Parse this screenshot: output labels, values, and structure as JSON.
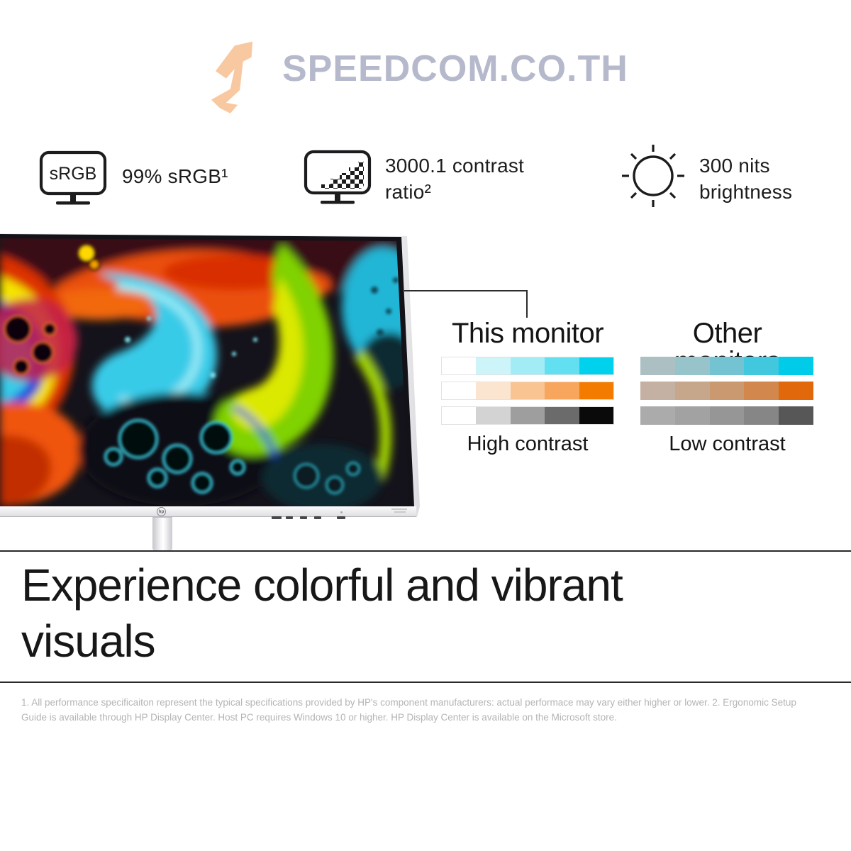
{
  "brand": {
    "name": "SPEEDCOM.CO.TH"
  },
  "specs": [
    {
      "icon": "srgb-monitor-icon",
      "icon_text": "sRGB",
      "lines": [
        "99% sRGB¹"
      ]
    },
    {
      "icon": "contrast-checkerboard-icon",
      "lines": [
        "3000.1 contrast",
        "ratio²"
      ]
    },
    {
      "icon": "brightness-sun-icon",
      "lines": [
        "300 nits",
        "brightness"
      ]
    }
  ],
  "monitor": {
    "logo_text": "hp"
  },
  "comparison": {
    "left": {
      "title": "This monitor",
      "caption": "High contrast",
      "rows": [
        {
          "name": "cyan",
          "colors": [
            "#ffffff",
            "#cdf4f9",
            "#a2ecf5",
            "#63dff2",
            "#00d2ee"
          ]
        },
        {
          "name": "orange",
          "colors": [
            "#ffffff",
            "#fce5d0",
            "#fac392",
            "#f8a55e",
            "#f37c00"
          ]
        },
        {
          "name": "grayscale",
          "colors": [
            "#ffffff",
            "#d3d3d3",
            "#9e9e9e",
            "#6b6b6b",
            "#0a0a0a"
          ]
        }
      ]
    },
    "right": {
      "title": "Other monitors",
      "caption": "Low contrast",
      "rows": [
        {
          "name": "cyan",
          "colors": [
            "#acc0c4",
            "#97c3ca",
            "#73c3d2",
            "#41c7de",
            "#00cbe9"
          ]
        },
        {
          "name": "orange",
          "colors": [
            "#c4b1a3",
            "#c7a78c",
            "#cb9970",
            "#d2874c",
            "#e2680c"
          ]
        },
        {
          "name": "grayscale",
          "colors": [
            "#ababab",
            "#a2a2a2",
            "#969696",
            "#868686",
            "#575757"
          ]
        }
      ]
    }
  },
  "heading": {
    "lines": [
      "Experience colorful and vibrant",
      "visuals"
    ]
  },
  "footnote": "1. All performance specificaiton represent the typical specifications provided by HP's component manufacturers: actual performace may vary either higher or lower. 2. Ergonomic Setup Guide is available through HP Display Center. Host PC requires Windows 10 or higher. HP Display Center is available on the Microsoft store.",
  "colors": {
    "logo_icon": "#f8c9a0",
    "logo_text": "#b5b9cb",
    "accent_cyan": "#00d2ee",
    "accent_orange": "#f37c00"
  }
}
